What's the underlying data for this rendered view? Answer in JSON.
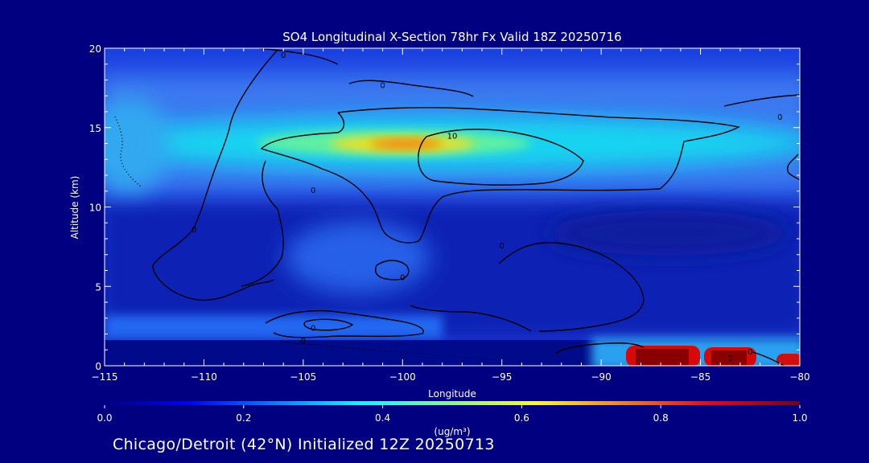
{
  "chart_data": {
    "type": "heatmap",
    "title": "SO4 Longitudinal X-Section 78hr  Fx Valid 18Z 20250716",
    "xlabel": "Longitude",
    "ylabel": "Altitude (km)",
    "xlim": [
      -115,
      -80
    ],
    "ylim": [
      0,
      20
    ],
    "x_ticks": [
      -115,
      -110,
      -105,
      -100,
      -95,
      -90,
      -85,
      -80
    ],
    "x_tick_labels": [
      "−115",
      "−110",
      "−105",
      "−100",
      "−95",
      "−90",
      "−85",
      "−80"
    ],
    "y_ticks": [
      0,
      5,
      10,
      15,
      20
    ],
    "y_tick_labels": [
      "0",
      "5",
      "10",
      "15",
      "20"
    ],
    "colorbar": {
      "min": 0.0,
      "max": 1.0,
      "ticks": [
        0.0,
        0.2,
        0.4,
        0.6,
        0.8,
        1.0
      ],
      "tick_labels": [
        "0.0",
        "0.2",
        "0.4",
        "0.6",
        "0.8",
        "1.0"
      ],
      "unit_label": "(ug/m³)",
      "colormap": "blue-cyan-yellow-red"
    },
    "background_value": 0.08,
    "features": [
      {
        "lon": -99.5,
        "alt": 14.0,
        "value": 0.78
      },
      {
        "lon": -97.0,
        "alt": 14.0,
        "value": 0.6
      },
      {
        "lon": -86.5,
        "alt": 0.6,
        "value": 1.0
      },
      {
        "lon": -83.0,
        "alt": 0.6,
        "value": 1.0
      },
      {
        "lon": -80.5,
        "alt": 0.4,
        "value": 0.9
      },
      {
        "lon": -103.0,
        "alt": 6.5,
        "value": 0.28
      },
      {
        "lon": -113.0,
        "alt": 15.0,
        "value": 0.3
      }
    ],
    "contour_labels": [
      {
        "text": "0",
        "lon": -106.0,
        "alt": 19.6
      },
      {
        "text": "0",
        "lon": -101.0,
        "alt": 17.7
      },
      {
        "text": "0",
        "lon": -81.0,
        "alt": 15.7
      },
      {
        "text": "10",
        "lon": -97.5,
        "alt": 14.5
      },
      {
        "text": "0",
        "lon": -104.5,
        "alt": 11.1
      },
      {
        "text": "0",
        "lon": -110.5,
        "alt": 8.6
      },
      {
        "text": "0",
        "lon": -95.0,
        "alt": 7.6
      },
      {
        "text": "0",
        "lon": -100.0,
        "alt": 5.6
      },
      {
        "text": "0",
        "lon": -104.5,
        "alt": 2.4
      },
      {
        "text": "0",
        "lon": -105.0,
        "alt": 1.6
      },
      {
        "text": "0",
        "lon": -83.5,
        "alt": 0.5
      },
      {
        "text": "0",
        "lon": -82.5,
        "alt": 0.9
      }
    ]
  },
  "footer": "Chicago/Detroit (42°N) Initialized 12Z 20250713"
}
